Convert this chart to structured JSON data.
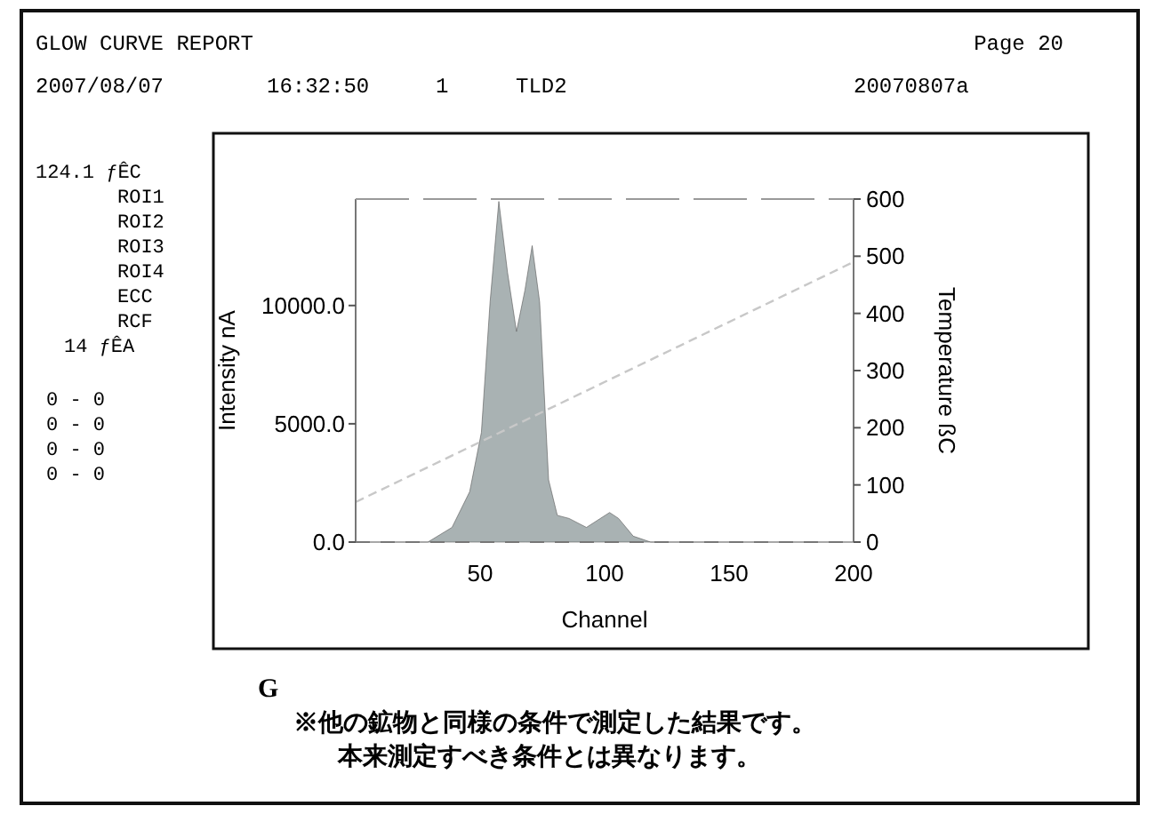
{
  "chart_data": {
    "type": "area",
    "title": "GLOW CURVE REPORT",
    "xlabel": "Channel",
    "ylabel": "Intensity nA",
    "y2label": "Temperature ßC",
    "xlim": [
      0,
      200
    ],
    "xticks": [
      50,
      100,
      150,
      200
    ],
    "ylim": [
      0,
      14500
    ],
    "yticks": [
      {
        "value": 0,
        "label": "0.0"
      },
      {
        "value": 5000,
        "label": "5000.0"
      },
      {
        "value": 10000,
        "label": "10000.0"
      }
    ],
    "y2lim": [
      0,
      600
    ],
    "y2ticks": [
      0,
      100,
      200,
      300,
      400,
      500,
      600
    ],
    "series": [
      {
        "color": "#9aa4a6",
        "x": [
          0,
          29,
          38.7,
          45.8,
          50.5,
          54,
          57.5,
          61,
          64.6,
          68,
          70.9,
          73.9,
          77.5,
          81,
          85.7,
          92.7,
          102,
          105.6,
          111.5,
          118.5,
          200
        ],
        "values": [
          0,
          0,
          620,
          2130,
          4630,
          10150,
          14400,
          11400,
          8900,
          10650,
          12530,
          10150,
          2630,
          1130,
          1000,
          620,
          1250,
          1000,
          250,
          0,
          0
        ]
      },
      {
        "type": "line",
        "axis": "y2",
        "color": "#c8c8c8",
        "line_style": "dashed",
        "x": [
          0,
          200
        ],
        "values": [
          70,
          490
        ]
      }
    ],
    "annotations": [
      "Page 20",
      "2007/08/07",
      "16:32:50",
      "1",
      "TLD2",
      "20070807a",
      "124.1 ƒÊC",
      "ROI1",
      "ROI2",
      "ROI3",
      "ROI4",
      "ECC",
      "RCF",
      "14 ƒÊA",
      "0 -   0",
      "0 -   0",
      "0 -   0",
      "0 -   0",
      "G",
      "※他の鉱物と同様の条件で測定した結果です。",
      "本来測定すべき条件とは異なります。"
    ]
  }
}
